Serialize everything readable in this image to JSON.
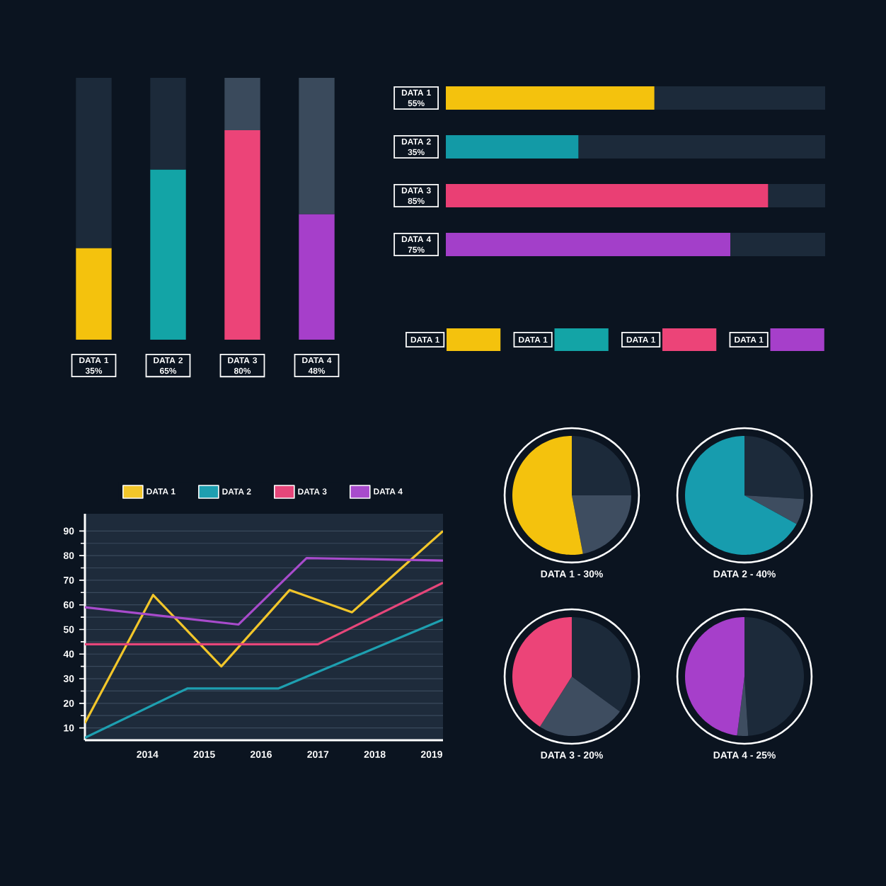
{
  "chart_data": [
    {
      "type": "bar",
      "stacked": true,
      "categories": [
        "DATA 1",
        "DATA 2",
        "DATA 3",
        "DATA 4"
      ],
      "series": [
        {
          "colors": [
            "#f4c20d",
            "#13a4a6",
            "#ec4478",
            "#a63fca"
          ],
          "values": [
            35,
            65,
            80,
            48
          ],
          "value_labels": [
            "35%",
            "65%",
            "80%",
            "48%"
          ]
        },
        {
          "colors": [
            "#1c2a3a",
            "#1c2a3a",
            "#3a4a5c",
            "#3a4a5c"
          ],
          "values": [
            65,
            35,
            20,
            52
          ]
        }
      ]
    },
    {
      "type": "bar",
      "stacked": true,
      "orientation": "horizontal",
      "categories": [
        "DATA 1",
        "DATA 2",
        "DATA 3",
        "DATA 4"
      ],
      "series": [
        {
          "colors": [
            "#f4c20d",
            "#139aa6",
            "#ea3f74",
            "#a33fc9"
          ],
          "values": [
            55,
            35,
            85,
            75
          ],
          "value_labels": [
            "55%",
            "35%",
            "85%",
            "75%"
          ]
        },
        {
          "colors": [
            "#1c2a3a",
            "#1c2a3a",
            "#1c2a3a",
            "#1c2a3a"
          ],
          "values": [
            45,
            65,
            15,
            25
          ]
        }
      ]
    },
    {
      "type": "other",
      "annotations": [
        "DATA 1",
        "DATA 1",
        "DATA 1",
        "DATA 1"
      ],
      "colors": [
        "#f4c20d",
        "#13a4a6",
        "#ec4478",
        "#a63fca"
      ]
    },
    {
      "type": "line",
      "xlim": [
        2012.9,
        2019.2
      ],
      "ylim": [
        5,
        97
      ],
      "xticks": [
        2014,
        2015,
        2016,
        2017,
        2018,
        2019
      ],
      "yticks": [
        10,
        20,
        30,
        40,
        50,
        60,
        70,
        80,
        90
      ],
      "grid": "y",
      "legend": "top",
      "series": [
        {
          "name": "DATA 1",
          "color": "#f2c62a",
          "x": [
            2012.9,
            2014.1,
            2015.3,
            2016.5,
            2017.6,
            2019.2
          ],
          "values": [
            12,
            64,
            35,
            66,
            57,
            90
          ]
        },
        {
          "name": "DATA 2",
          "color": "#1e9fb0",
          "x": [
            2012.9,
            2014.7,
            2016.3,
            2019.2
          ],
          "values": [
            6,
            26,
            26,
            54
          ]
        },
        {
          "name": "DATA 3",
          "color": "#e6467a",
          "x": [
            2012.9,
            2017.0,
            2019.2
          ],
          "values": [
            44,
            44,
            69
          ]
        },
        {
          "name": "DATA 4",
          "color": "#a84bcc",
          "x": [
            2012.9,
            2015.6,
            2016.8,
            2019.2
          ],
          "values": [
            59,
            52,
            79,
            78
          ]
        }
      ]
    },
    {
      "type": "pie",
      "title": "DATA 1 - 30%",
      "categories": [
        null,
        null,
        null
      ],
      "values": [
        25,
        22,
        53
      ],
      "colors": [
        "#1c2a3a",
        "#3e4d60",
        "#f4c20d"
      ]
    },
    {
      "type": "pie",
      "title": "DATA 2 - 40%",
      "categories": [
        null,
        null,
        null
      ],
      "values": [
        26,
        7,
        67
      ],
      "colors": [
        "#1c2a3a",
        "#3e4d60",
        "#179cae"
      ]
    },
    {
      "type": "pie",
      "title": "DATA 3 - 20%",
      "categories": [
        null,
        null,
        null
      ],
      "values": [
        35,
        24,
        41
      ],
      "colors": [
        "#1c2a3a",
        "#3e4d60",
        "#ec4478"
      ]
    },
    {
      "type": "pie",
      "title": "DATA 4 - 25%",
      "categories": [
        null,
        null,
        null
      ],
      "values": [
        49,
        3,
        48
      ],
      "colors": [
        "#1c2a3a",
        "#3e4d60",
        "#a63fca"
      ]
    }
  ]
}
